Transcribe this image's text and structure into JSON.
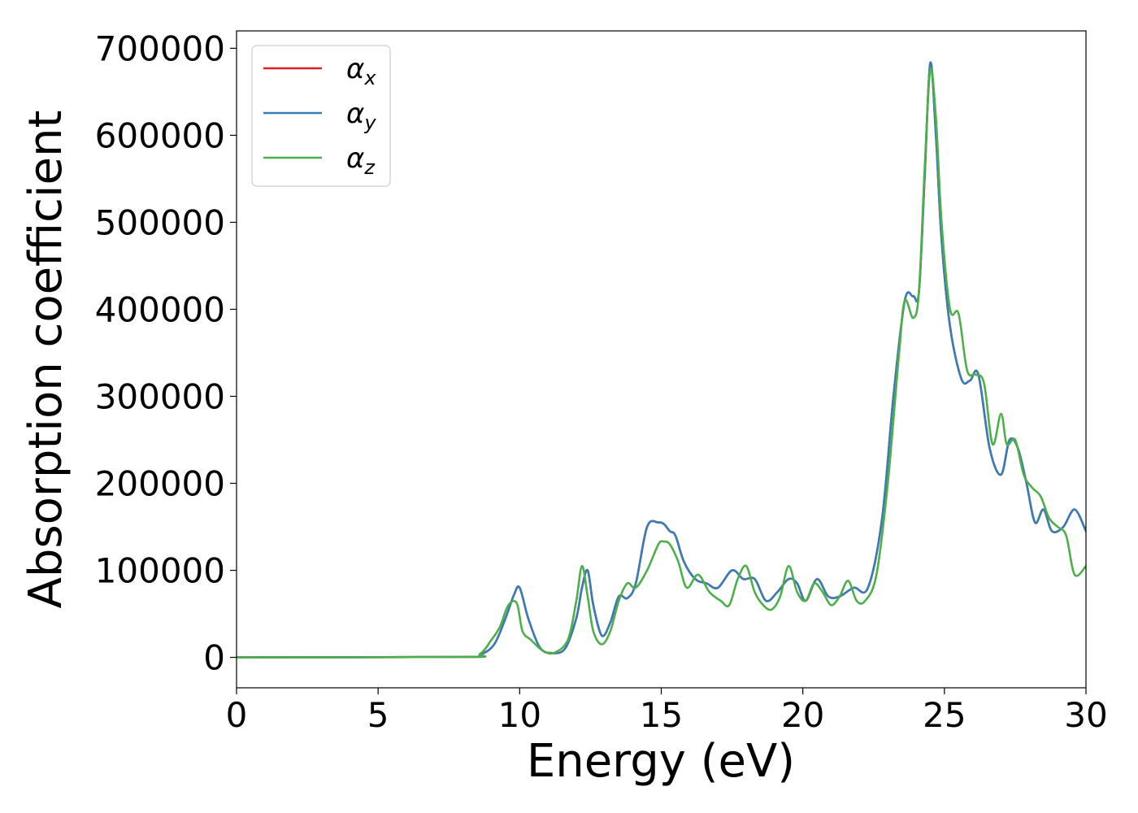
{
  "chart_data": {
    "type": "line",
    "xlabel": "Energy (eV)",
    "ylabel": "Absorption coefficient",
    "xlim": [
      0,
      30
    ],
    "ylim": [
      -35000,
      720000
    ],
    "xticks": [
      0,
      5,
      10,
      15,
      20,
      25,
      30
    ],
    "yticks": [
      0,
      100000,
      200000,
      300000,
      400000,
      500000,
      600000,
      700000
    ],
    "grid": false,
    "legend_position": "top-left",
    "series": [
      {
        "name": "α_x",
        "symbol": "α",
        "subscript": "x",
        "color": "#e41a1c",
        "x": [
          0,
          8,
          8.6,
          9.1,
          9.5,
          9.8,
          10.0,
          10.3,
          10.7,
          11.1,
          11.6,
          12.0,
          12.2,
          12.4,
          12.6,
          12.9,
          13.2,
          13.5,
          13.8,
          14.1,
          14.5,
          14.9,
          15.1,
          15.3,
          15.5,
          15.8,
          16.2,
          16.6,
          17.0,
          17.5,
          17.9,
          18.3,
          18.7,
          19.1,
          19.5,
          19.8,
          20.1,
          20.5,
          20.9,
          21.3,
          21.8,
          22.3,
          22.8,
          23.2,
          23.6,
          23.9,
          24.1,
          24.3,
          24.5,
          24.7,
          24.9,
          25.2,
          25.6,
          25.9,
          26.2,
          26.6,
          27.0,
          27.3,
          27.6,
          27.9,
          28.2,
          28.5,
          28.8,
          29.2,
          29.6,
          30.0
        ],
        "values": [
          0,
          500,
          3000,
          15000,
          45000,
          72000,
          80000,
          45000,
          12000,
          5000,
          10000,
          45000,
          80000,
          100000,
          60000,
          25000,
          40000,
          70000,
          68000,
          85000,
          150000,
          155000,
          153000,
          145000,
          140000,
          110000,
          90000,
          85000,
          80000,
          100000,
          90000,
          90000,
          65000,
          75000,
          90000,
          85000,
          65000,
          90000,
          70000,
          70000,
          80000,
          80000,
          160000,
          300000,
          410000,
          415000,
          420000,
          550000,
          683000,
          600000,
          480000,
          380000,
          320000,
          318000,
          325000,
          240000,
          210000,
          250000,
          240000,
          200000,
          155000,
          170000,
          145000,
          150000,
          170000,
          145000
        ]
      },
      {
        "name": "α_y",
        "symbol": "α",
        "subscript": "y",
        "color": "#377eb8",
        "x": [
          0,
          8,
          8.6,
          9.1,
          9.5,
          9.8,
          10.0,
          10.3,
          10.7,
          11.1,
          11.6,
          12.0,
          12.2,
          12.4,
          12.6,
          12.9,
          13.2,
          13.5,
          13.8,
          14.1,
          14.5,
          14.9,
          15.1,
          15.3,
          15.5,
          15.8,
          16.2,
          16.6,
          17.0,
          17.5,
          17.9,
          18.3,
          18.7,
          19.1,
          19.5,
          19.8,
          20.1,
          20.5,
          20.9,
          21.3,
          21.8,
          22.3,
          22.8,
          23.2,
          23.6,
          23.9,
          24.1,
          24.3,
          24.5,
          24.7,
          24.9,
          25.2,
          25.6,
          25.9,
          26.2,
          26.6,
          27.0,
          27.3,
          27.6,
          27.9,
          28.2,
          28.5,
          28.8,
          29.2,
          29.6,
          30.0
        ],
        "values": [
          0,
          500,
          3000,
          15000,
          45000,
          72000,
          80000,
          45000,
          12000,
          5000,
          10000,
          45000,
          80000,
          100000,
          60000,
          25000,
          40000,
          70000,
          68000,
          85000,
          150000,
          155000,
          153000,
          145000,
          140000,
          110000,
          90000,
          85000,
          80000,
          100000,
          90000,
          90000,
          65000,
          75000,
          90000,
          85000,
          65000,
          90000,
          70000,
          70000,
          80000,
          80000,
          160000,
          300000,
          410000,
          415000,
          420000,
          550000,
          683000,
          600000,
          480000,
          380000,
          320000,
          318000,
          325000,
          240000,
          210000,
          250000,
          240000,
          200000,
          155000,
          170000,
          145000,
          150000,
          170000,
          145000
        ]
      },
      {
        "name": "α_z",
        "symbol": "α",
        "subscript": "z",
        "color": "#4daf4a",
        "x": [
          0,
          8,
          8.6,
          9.0,
          9.3,
          9.6,
          9.9,
          10.1,
          10.4,
          10.8,
          11.2,
          11.7,
          12.0,
          12.2,
          12.4,
          12.6,
          12.9,
          13.2,
          13.5,
          13.8,
          14.1,
          14.5,
          14.9,
          15.1,
          15.3,
          15.6,
          15.9,
          16.3,
          16.7,
          17.1,
          17.4,
          17.7,
          18.0,
          18.3,
          18.6,
          18.9,
          19.2,
          19.5,
          19.8,
          20.1,
          20.4,
          20.7,
          21.0,
          21.3,
          21.6,
          21.9,
          22.2,
          22.6,
          23.0,
          23.4,
          23.6,
          23.9,
          24.1,
          24.3,
          24.5,
          24.7,
          24.9,
          25.2,
          25.5,
          25.8,
          26.1,
          26.4,
          26.7,
          27.0,
          27.2,
          27.5,
          27.8,
          28.1,
          28.4,
          28.7,
          29.0,
          29.3,
          29.6,
          30.0
        ],
        "values": [
          0,
          500,
          4000,
          20000,
          35000,
          60000,
          62000,
          30000,
          20000,
          8000,
          5000,
          20000,
          65000,
          105000,
          70000,
          30000,
          15000,
          30000,
          65000,
          85000,
          80000,
          100000,
          130000,
          133000,
          130000,
          110000,
          80000,
          95000,
          75000,
          65000,
          60000,
          90000,
          105000,
          75000,
          60000,
          55000,
          70000,
          105000,
          75000,
          65000,
          85000,
          75000,
          60000,
          70000,
          88000,
          65000,
          65000,
          95000,
          200000,
          350000,
          410000,
          390000,
          420000,
          560000,
          675000,
          620000,
          500000,
          400000,
          395000,
          330000,
          325000,
          315000,
          245000,
          280000,
          245000,
          250000,
          210000,
          195000,
          185000,
          160000,
          150000,
          140000,
          95000,
          105000
        ]
      }
    ]
  }
}
